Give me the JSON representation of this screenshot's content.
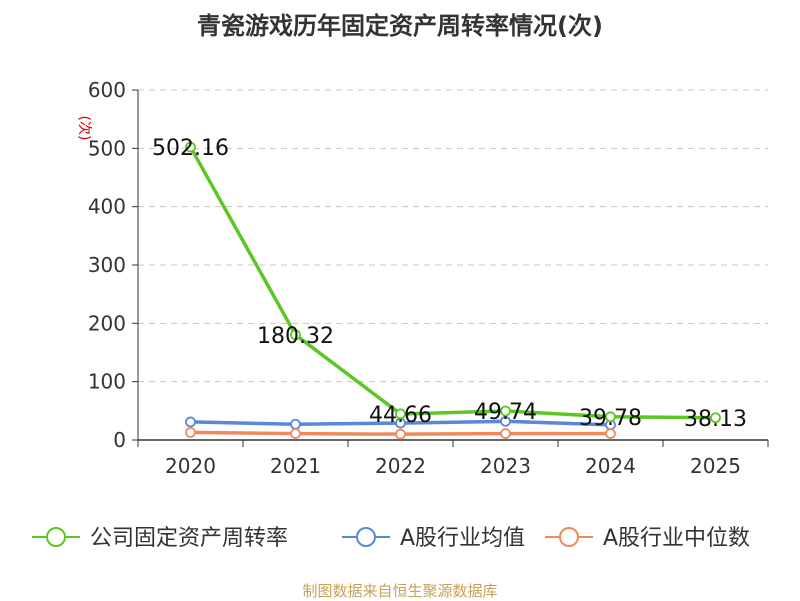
{
  "chart_data": {
    "type": "line",
    "title": "青瓷游戏历年固定资产周转率情况(次)",
    "ylabel": "(次)",
    "categories": [
      "2020",
      "2021",
      "2022",
      "2023",
      "2024",
      "2025"
    ],
    "ylim": [
      0,
      600
    ],
    "yticks": [
      0,
      100,
      200,
      300,
      400,
      500,
      600
    ],
    "grid": true,
    "legend_position": "bottom",
    "series": [
      {
        "name": "公司固定资产周转率",
        "color": "#5ac724",
        "values": [
          502.16,
          180.32,
          44.66,
          49.74,
          39.78,
          38.13
        ],
        "data_labels": [
          "502.16",
          "180.32",
          "44.66",
          "49.74",
          "39.78",
          "38.13"
        ]
      },
      {
        "name": "A股行业均值",
        "color": "#5b87d8",
        "values": [
          31,
          27,
          29,
          32,
          26,
          null
        ]
      },
      {
        "name": "A股行业中位数",
        "color": "#f08a5a",
        "values": [
          13,
          11,
          10,
          11,
          11,
          null
        ]
      }
    ]
  },
  "footer": {
    "source": "制图数据来自恒生聚源数据库"
  }
}
